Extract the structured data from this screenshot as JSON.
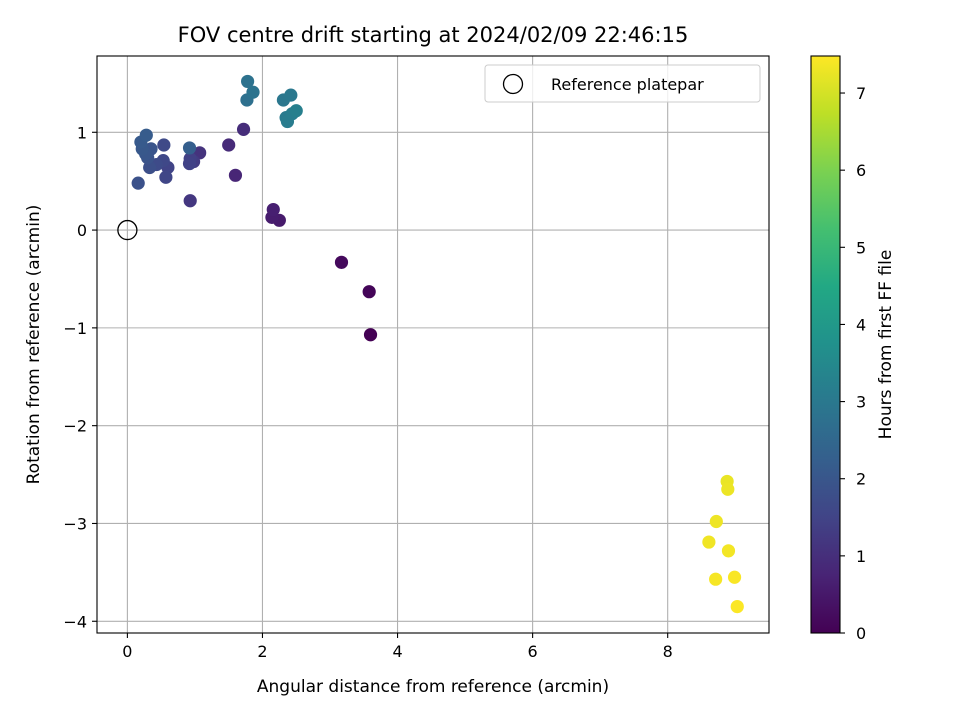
{
  "chart_data": {
    "type": "scatter",
    "title": "FOV centre drift starting at 2024/02/09 22:46:15",
    "xlabel": "Angular distance from reference (arcmin)",
    "ylabel": "Rotation from reference (arcmin)",
    "xlim": [
      -0.45,
      9.5
    ],
    "ylim": [
      -4.12,
      1.78
    ],
    "xticks": [
      0,
      2,
      4,
      6,
      8
    ],
    "yticks": [
      -4,
      -3,
      -2,
      -1,
      0,
      1
    ],
    "xtick_labels": [
      "0",
      "2",
      "4",
      "6",
      "8"
    ],
    "ytick_labels": [
      "−4",
      "−3",
      "−2",
      "−1",
      "0",
      "1"
    ],
    "grid": true,
    "legend": {
      "position": "top-right",
      "entries": [
        {
          "label": "Reference platepar",
          "marker": "open-circle"
        }
      ]
    },
    "reference_point": {
      "x": 0,
      "y": 0
    },
    "colorbar": {
      "label": "Hours from first FF file",
      "range": [
        0,
        7.48
      ],
      "ticks": [
        0,
        1,
        2,
        3,
        4,
        5,
        6,
        7
      ],
      "tick_labels": [
        "0",
        "1",
        "2",
        "3",
        "4",
        "5",
        "6",
        "7"
      ],
      "colormap": "viridis"
    },
    "points": [
      {
        "x": 3.6,
        "y": -1.07,
        "hours": 0.0
      },
      {
        "x": 3.58,
        "y": -0.63,
        "hours": 0.08
      },
      {
        "x": 3.17,
        "y": -0.33,
        "hours": 0.17
      },
      {
        "x": 2.25,
        "y": 0.1,
        "hours": 0.55
      },
      {
        "x": 2.14,
        "y": 0.13,
        "hours": 0.6
      },
      {
        "x": 2.16,
        "y": 0.21,
        "hours": 0.65
      },
      {
        "x": 1.6,
        "y": 0.56,
        "hours": 0.8
      },
      {
        "x": 1.5,
        "y": 0.87,
        "hours": 0.9
      },
      {
        "x": 1.72,
        "y": 1.03,
        "hours": 0.95
      },
      {
        "x": 1.07,
        "y": 0.79,
        "hours": 1.1
      },
      {
        "x": 0.93,
        "y": 0.3,
        "hours": 1.2
      },
      {
        "x": 0.98,
        "y": 0.7,
        "hours": 1.3
      },
      {
        "x": 0.93,
        "y": 0.73,
        "hours": 1.4
      },
      {
        "x": 0.92,
        "y": 0.68,
        "hours": 1.45
      },
      {
        "x": 0.6,
        "y": 0.64,
        "hours": 1.5
      },
      {
        "x": 0.57,
        "y": 0.54,
        "hours": 1.55
      },
      {
        "x": 0.53,
        "y": 0.71,
        "hours": 1.6
      },
      {
        "x": 0.54,
        "y": 0.87,
        "hours": 1.65
      },
      {
        "x": 0.43,
        "y": 0.67,
        "hours": 1.7
      },
      {
        "x": 0.33,
        "y": 0.64,
        "hours": 1.8
      },
      {
        "x": 0.16,
        "y": 0.48,
        "hours": 1.85
      },
      {
        "x": 0.3,
        "y": 0.74,
        "hours": 1.9
      },
      {
        "x": 0.35,
        "y": 0.83,
        "hours": 1.95
      },
      {
        "x": 0.27,
        "y": 0.78,
        "hours": 2.0
      },
      {
        "x": 0.22,
        "y": 0.83,
        "hours": 2.05
      },
      {
        "x": 0.2,
        "y": 0.9,
        "hours": 2.1
      },
      {
        "x": 0.28,
        "y": 0.97,
        "hours": 2.15
      },
      {
        "x": 0.92,
        "y": 0.84,
        "hours": 2.25
      },
      {
        "x": 1.77,
        "y": 1.33,
        "hours": 2.75
      },
      {
        "x": 1.78,
        "y": 1.52,
        "hours": 2.8
      },
      {
        "x": 1.86,
        "y": 1.41,
        "hours": 2.85
      },
      {
        "x": 2.31,
        "y": 1.33,
        "hours": 2.95
      },
      {
        "x": 2.42,
        "y": 1.38,
        "hours": 3.0
      },
      {
        "x": 2.35,
        "y": 1.15,
        "hours": 3.05
      },
      {
        "x": 2.37,
        "y": 1.11,
        "hours": 3.1
      },
      {
        "x": 2.44,
        "y": 1.19,
        "hours": 3.15
      },
      {
        "x": 2.5,
        "y": 1.22,
        "hours": 3.2
      },
      {
        "x": 8.88,
        "y": -2.57,
        "hours": 7.25
      },
      {
        "x": 8.89,
        "y": -2.65,
        "hours": 7.28
      },
      {
        "x": 8.72,
        "y": -2.98,
        "hours": 7.3
      },
      {
        "x": 8.61,
        "y": -3.19,
        "hours": 7.33
      },
      {
        "x": 8.9,
        "y": -3.28,
        "hours": 7.36
      },
      {
        "x": 8.71,
        "y": -3.57,
        "hours": 7.4
      },
      {
        "x": 8.99,
        "y": -3.55,
        "hours": 7.43
      },
      {
        "x": 9.03,
        "y": -3.85,
        "hours": 7.46
      }
    ]
  }
}
